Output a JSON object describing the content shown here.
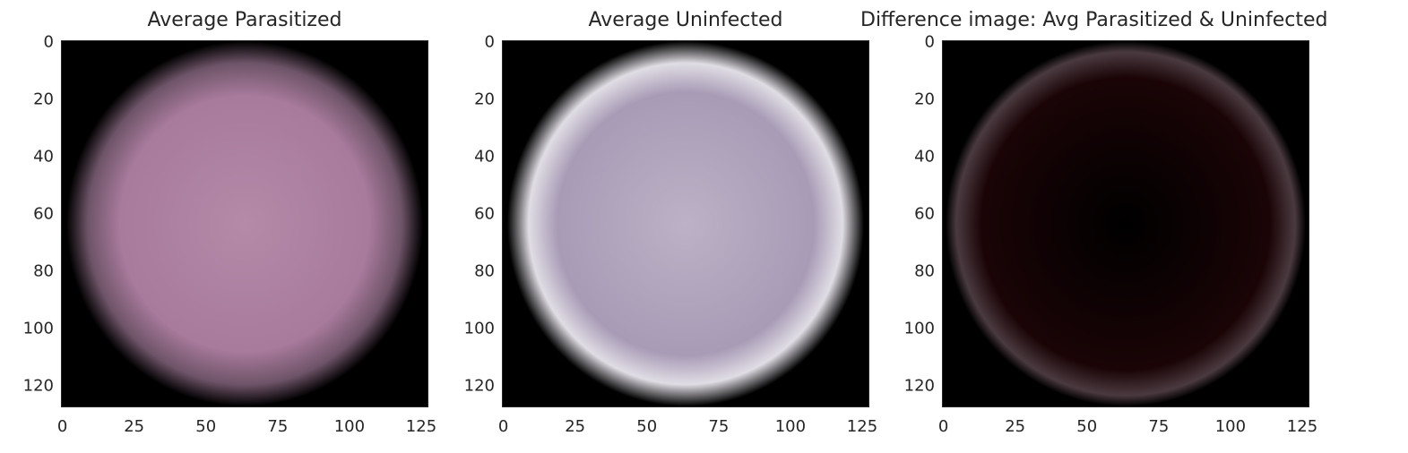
{
  "chart_data": [
    {
      "type": "heatmap",
      "title": "Average Parasitized",
      "xlim": [
        0,
        128
      ],
      "ylim": [
        128,
        0
      ],
      "xticks": [
        "0",
        "25",
        "50",
        "75",
        "100",
        "125"
      ],
      "yticks": [
        "0",
        "20",
        "40",
        "60",
        "80",
        "100",
        "120"
      ],
      "xtick_values": [
        0,
        25,
        50,
        75,
        100,
        125
      ],
      "ytick_values": [
        0,
        20,
        40,
        60,
        80,
        100,
        120
      ],
      "grid": false,
      "colors": {
        "center": "#b48aa8",
        "mid": "#a87a9c",
        "edge": "#6e5468",
        "background": "#000000"
      }
    },
    {
      "type": "heatmap",
      "title": "Average Uninfected",
      "xlim": [
        0,
        128
      ],
      "ylim": [
        128,
        0
      ],
      "xticks": [
        "0",
        "25",
        "50",
        "75",
        "100",
        "125"
      ],
      "yticks": [
        "0",
        "20",
        "40",
        "60",
        "80",
        "100",
        "120"
      ],
      "xtick_values": [
        0,
        25,
        50,
        75,
        100,
        125
      ],
      "ytick_values": [
        0,
        20,
        40,
        60,
        80,
        100,
        120
      ],
      "grid": false,
      "colors": {
        "center": "#bcb1c6",
        "mid": "#a89bb6",
        "edge": "#e0dde4",
        "background": "#000000"
      }
    },
    {
      "type": "heatmap",
      "title": "Difference image: Avg Parasitized & Uninfected",
      "xlim": [
        0,
        128
      ],
      "ylim": [
        128,
        0
      ],
      "xticks": [
        "0",
        "25",
        "50",
        "75",
        "100",
        "125"
      ],
      "yticks": [
        "0",
        "20",
        "40",
        "60",
        "80",
        "100",
        "120"
      ],
      "xtick_values": [
        0,
        25,
        50,
        75,
        100,
        125
      ],
      "ytick_values": [
        0,
        20,
        40,
        60,
        80,
        100,
        120
      ],
      "grid": false,
      "colors": {
        "center": "#000000",
        "mid": "#1a0406",
        "edge": "#4a3a40",
        "background": "#000000"
      }
    }
  ]
}
